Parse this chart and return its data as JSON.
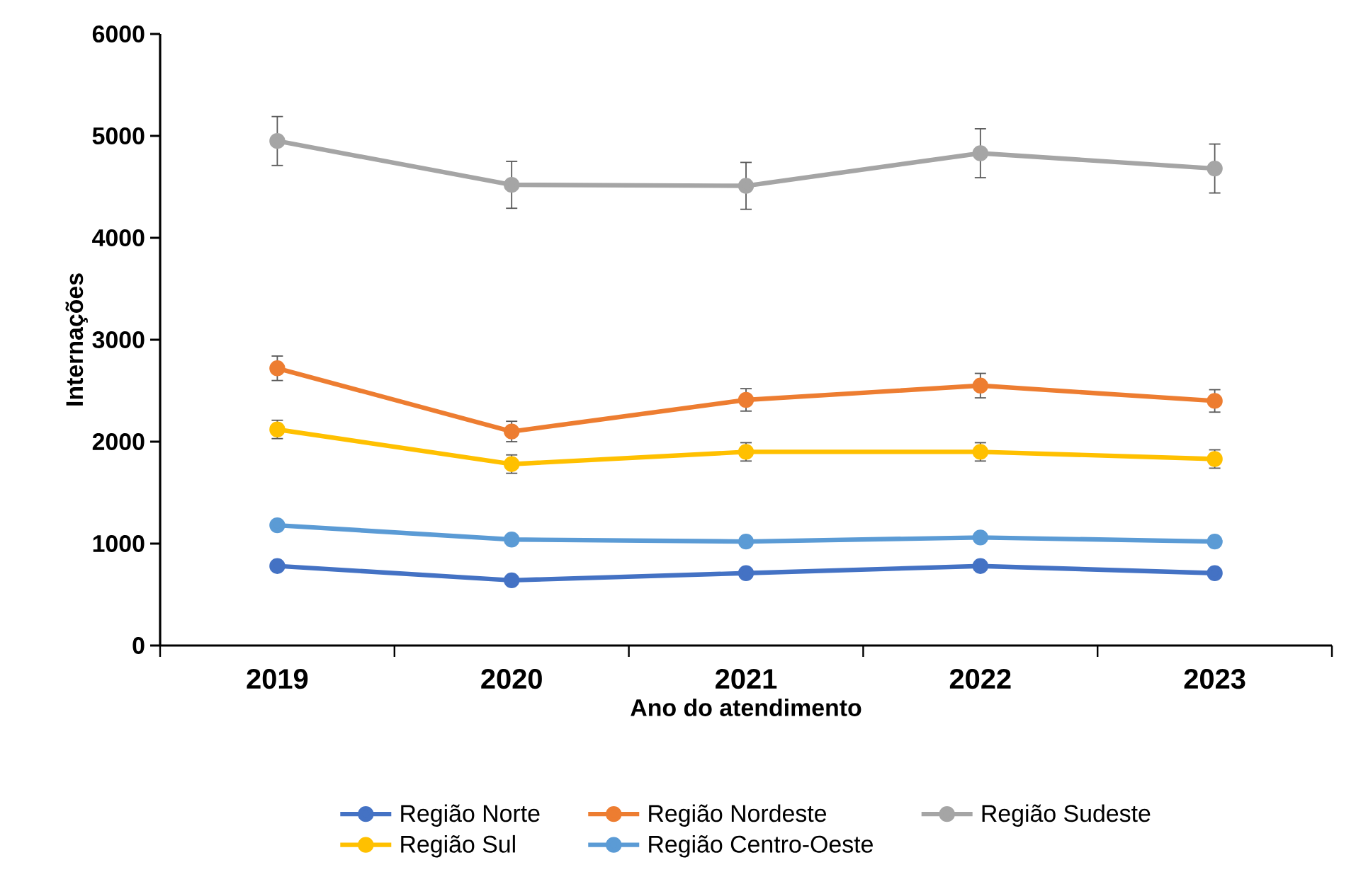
{
  "chart_data": {
    "type": "line",
    "xlabel": "Ano do atendimento",
    "ylabel": "Internações",
    "categories": [
      "2019",
      "2020",
      "2021",
      "2022",
      "2023"
    ],
    "series": [
      {
        "name": "Região Norte",
        "color": "#4472c4",
        "values": [
          780,
          640,
          710,
          780,
          710
        ]
      },
      {
        "name": "Região Nordeste",
        "color": "#ed7d31",
        "values": [
          2720,
          2100,
          2410,
          2550,
          2400
        ],
        "errors": [
          120,
          100,
          110,
          120,
          110
        ]
      },
      {
        "name": "Região Sudeste",
        "color": "#a5a5a5",
        "values": [
          4950,
          4520,
          4510,
          4830,
          4680
        ],
        "errors": [
          240,
          230,
          230,
          240,
          240
        ]
      },
      {
        "name": "Região Sul",
        "color": "#ffc000",
        "values": [
          2120,
          1780,
          1900,
          1900,
          1830
        ],
        "errors": [
          90,
          90,
          90,
          90,
          90
        ]
      },
      {
        "name": "Região Centro-Oeste",
        "color": "#5b9bd5",
        "values": [
          1180,
          1040,
          1020,
          1060,
          1020
        ]
      }
    ],
    "ylim": [
      0,
      6000
    ],
    "yticks": [
      0,
      1000,
      2000,
      3000,
      4000,
      5000,
      6000
    ],
    "legend": "bottom",
    "marker": "circle",
    "line_style": "solid"
  }
}
